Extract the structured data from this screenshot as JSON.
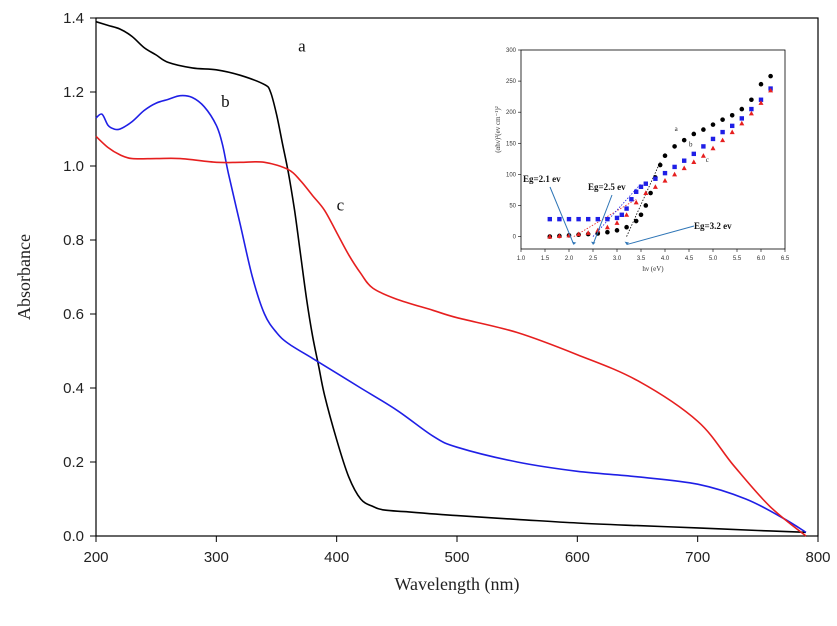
{
  "chart_data": [
    {
      "type": "line",
      "xlabel": "Wavelength (nm)",
      "ylabel": "Absorbance",
      "xlim": [
        200,
        800
      ],
      "ylim": [
        0,
        1.4
      ],
      "xticks": [
        200,
        300,
        400,
        500,
        600,
        700,
        800
      ],
      "xtick_labels": [
        "200",
        "300",
        "400",
        "500",
        "600",
        "700",
        "800"
      ],
      "yticks": [
        0,
        0.2,
        0.4,
        0.6,
        0.8,
        1.0,
        1.2,
        1.4
      ],
      "ytick_labels": [
        "0.0",
        "0.2",
        "0.4",
        "0.6",
        "0.8",
        "1.0",
        "1.2",
        "1.4"
      ],
      "grid": false,
      "series": [
        {
          "name": "a",
          "color": "#000000",
          "x": [
            200,
            210,
            220,
            230,
            240,
            250,
            260,
            280,
            300,
            320,
            340,
            345,
            350,
            355,
            360,
            365,
            370,
            375,
            380,
            385,
            390,
            400,
            410,
            420,
            430,
            440,
            460,
            500,
            550,
            600,
            650,
            700,
            750,
            790
          ],
          "y": [
            1.39,
            1.38,
            1.37,
            1.35,
            1.32,
            1.3,
            1.28,
            1.265,
            1.26,
            1.245,
            1.22,
            1.2,
            1.14,
            1.06,
            0.98,
            0.88,
            0.76,
            0.64,
            0.54,
            0.46,
            0.38,
            0.26,
            0.16,
            0.1,
            0.08,
            0.07,
            0.065,
            0.055,
            0.045,
            0.035,
            0.028,
            0.022,
            0.015,
            0.01
          ]
        },
        {
          "name": "b",
          "color": "#1f1fe6",
          "x": [
            200,
            205,
            210,
            215,
            220,
            230,
            240,
            250,
            260,
            270,
            280,
            290,
            300,
            305,
            310,
            320,
            330,
            340,
            350,
            360,
            380,
            400,
            420,
            450,
            480,
            500,
            550,
            600,
            650,
            700,
            740,
            770,
            790
          ],
          "y": [
            1.13,
            1.14,
            1.11,
            1.1,
            1.1,
            1.12,
            1.15,
            1.17,
            1.18,
            1.19,
            1.185,
            1.16,
            1.11,
            1.06,
            0.98,
            0.84,
            0.7,
            0.6,
            0.55,
            0.52,
            0.48,
            0.44,
            0.4,
            0.34,
            0.27,
            0.24,
            0.2,
            0.175,
            0.16,
            0.14,
            0.1,
            0.05,
            0.01
          ]
        },
        {
          "name": "c",
          "color": "#e61f1f",
          "x": [
            200,
            210,
            220,
            230,
            250,
            270,
            300,
            320,
            340,
            360,
            370,
            380,
            390,
            400,
            410,
            420,
            430,
            450,
            480,
            500,
            550,
            600,
            650,
            700,
            730,
            760,
            790
          ],
          "y": [
            1.08,
            1.05,
            1.03,
            1.02,
            1.02,
            1.02,
            1.01,
            1.01,
            1.01,
            0.99,
            0.96,
            0.92,
            0.88,
            0.82,
            0.76,
            0.71,
            0.67,
            0.64,
            0.61,
            0.59,
            0.55,
            0.49,
            0.42,
            0.31,
            0.19,
            0.08,
            0.0
          ]
        }
      ],
      "annotations": [
        {
          "text": "a",
          "x": 368,
          "y": 1.31
        },
        {
          "text": "b",
          "x": 304,
          "y": 1.16
        },
        {
          "text": "c",
          "x": 400,
          "y": 0.88
        }
      ]
    },
    {
      "type": "scatter",
      "xlabel": "hν (eV)",
      "ylabel": "(αhν)²(ev cm⁻¹)²",
      "xlim": [
        1.0,
        6.5
      ],
      "ylim": [
        -20,
        300
      ],
      "xticks": [
        1.0,
        1.5,
        2.0,
        2.5,
        3.0,
        3.5,
        4.0,
        4.5,
        5.0,
        5.5,
        6.0,
        6.5
      ],
      "xtick_labels": [
        "1.0",
        "1.5",
        "2.0",
        "2.5",
        "3.0",
        "3.5",
        "4.0",
        "4.5",
        "5.0",
        "5.5",
        "6.0",
        "6.5"
      ],
      "yticks": [
        0,
        50,
        100,
        150,
        200,
        250,
        300
      ],
      "ytick_labels": [
        "0",
        "50",
        "100",
        "150",
        "200",
        "250",
        "300"
      ],
      "series": [
        {
          "name": "a",
          "color": "#000000",
          "marker": "circle",
          "x": [
            1.6,
            1.8,
            2.0,
            2.2,
            2.4,
            2.6,
            2.8,
            3.0,
            3.2,
            3.4,
            3.5,
            3.6,
            3.7,
            3.8,
            3.9,
            4.0,
            4.2,
            4.4,
            4.6,
            4.8,
            5.0,
            5.2,
            5.4,
            5.6,
            5.8,
            6.0,
            6.2
          ],
          "y": [
            0,
            1,
            2,
            3,
            4,
            5,
            7,
            10,
            15,
            25,
            35,
            50,
            70,
            95,
            115,
            130,
            145,
            155,
            165,
            172,
            180,
            188,
            195,
            205,
            220,
            245,
            258
          ]
        },
        {
          "name": "b",
          "color": "#1f1fe6",
          "marker": "square",
          "x": [
            1.6,
            1.8,
            2.0,
            2.2,
            2.4,
            2.6,
            2.8,
            3.0,
            3.1,
            3.2,
            3.3,
            3.4,
            3.5,
            3.6,
            3.8,
            4.0,
            4.2,
            4.4,
            4.6,
            4.8,
            5.0,
            5.2,
            5.4,
            5.6,
            5.8,
            6.0,
            6.2
          ],
          "y": [
            28,
            28,
            28,
            28,
            28,
            28,
            28,
            30,
            35,
            45,
            60,
            72,
            80,
            85,
            93,
            102,
            112,
            122,
            133,
            145,
            157,
            168,
            178,
            190,
            205,
            220,
            238
          ]
        },
        {
          "name": "c",
          "color": "#e61f1f",
          "marker": "triangle",
          "x": [
            1.6,
            1.8,
            2.0,
            2.2,
            2.4,
            2.6,
            2.8,
            3.0,
            3.2,
            3.4,
            3.6,
            3.8,
            4.0,
            4.2,
            4.4,
            4.6,
            4.8,
            5.0,
            5.2,
            5.4,
            5.6,
            5.8,
            6.0,
            6.2
          ],
          "y": [
            0,
            1,
            2,
            4,
            6,
            10,
            15,
            22,
            35,
            55,
            70,
            80,
            90,
            100,
            110,
            120,
            130,
            142,
            155,
            168,
            182,
            198,
            215,
            235
          ]
        }
      ],
      "annotations": [
        {
          "text": "a",
          "x": 4.2,
          "y": 170
        },
        {
          "text": "b",
          "x": 4.5,
          "y": 145
        },
        {
          "text": "c",
          "x": 4.85,
          "y": 120
        }
      ],
      "band_gap_labels": [
        {
          "text": "Eg=2.1 ev",
          "x_intercept": 2.1
        },
        {
          "text": "Eg=2.5 ev",
          "x_intercept": 2.5
        },
        {
          "text": "Eg=3.2 ev",
          "x_intercept": 3.2
        }
      ]
    }
  ]
}
